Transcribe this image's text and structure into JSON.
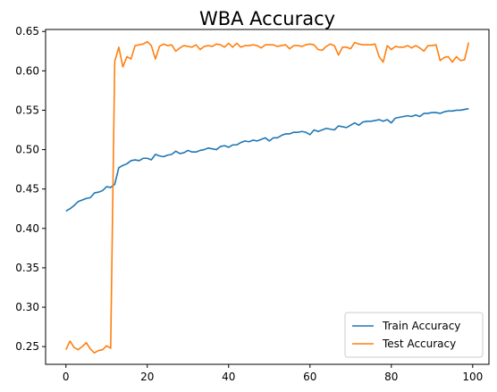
{
  "chart_data": {
    "type": "line",
    "title": "WBA Accuracy",
    "xlabel": "",
    "ylabel": "",
    "xlim": [
      -5.0,
      104.0
    ],
    "ylim": [
      0.2275,
      0.6525
    ],
    "xticks": [
      0,
      20,
      40,
      60,
      80,
      100
    ],
    "xtick_labels": [
      "0",
      "20",
      "40",
      "60",
      "80",
      "100"
    ],
    "yticks": [
      0.25,
      0.3,
      0.35,
      0.4,
      0.45,
      0.5,
      0.55,
      0.6,
      0.65
    ],
    "ytick_labels": [
      "0.25",
      "0.30",
      "0.35",
      "0.40",
      "0.45",
      "0.50",
      "0.55",
      "0.60",
      "0.65"
    ],
    "grid": false,
    "legend_position": "lower right",
    "series": [
      {
        "name": "Train Accuracy",
        "color": "#1f77b4",
        "values": [
          0.422,
          0.425,
          0.429,
          0.434,
          0.436,
          0.438,
          0.439,
          0.445,
          0.446,
          0.448,
          0.453,
          0.452,
          0.456,
          0.477,
          0.48,
          0.482,
          0.486,
          0.487,
          0.486,
          0.489,
          0.489,
          0.487,
          0.494,
          0.492,
          0.491,
          0.493,
          0.494,
          0.498,
          0.495,
          0.496,
          0.499,
          0.497,
          0.497,
          0.499,
          0.5,
          0.502,
          0.501,
          0.5,
          0.504,
          0.505,
          0.503,
          0.506,
          0.506,
          0.509,
          0.511,
          0.51,
          0.512,
          0.511,
          0.513,
          0.515,
          0.511,
          0.515,
          0.515,
          0.518,
          0.52,
          0.52,
          0.522,
          0.522,
          0.523,
          0.522,
          0.519,
          0.525,
          0.523,
          0.525,
          0.527,
          0.526,
          0.525,
          0.53,
          0.529,
          0.528,
          0.531,
          0.534,
          0.531,
          0.535,
          0.536,
          0.536,
          0.537,
          0.538,
          0.536,
          0.538,
          0.534,
          0.54,
          0.541,
          0.542,
          0.543,
          0.542,
          0.544,
          0.542,
          0.546,
          0.546,
          0.547,
          0.547,
          0.546,
          0.548,
          0.549,
          0.549,
          0.55,
          0.55,
          0.551,
          0.552
        ]
      },
      {
        "name": "Test Accuracy",
        "color": "#ff7f0e",
        "values": [
          0.246,
          0.257,
          0.249,
          0.246,
          0.25,
          0.255,
          0.247,
          0.242,
          0.245,
          0.246,
          0.251,
          0.248,
          0.612,
          0.63,
          0.605,
          0.618,
          0.615,
          0.632,
          0.633,
          0.634,
          0.637,
          0.632,
          0.615,
          0.631,
          0.634,
          0.632,
          0.633,
          0.625,
          0.629,
          0.632,
          0.631,
          0.63,
          0.633,
          0.627,
          0.631,
          0.632,
          0.631,
          0.634,
          0.633,
          0.63,
          0.635,
          0.63,
          0.635,
          0.63,
          0.632,
          0.632,
          0.633,
          0.632,
          0.629,
          0.633,
          0.633,
          0.633,
          0.631,
          0.632,
          0.633,
          0.628,
          0.632,
          0.632,
          0.631,
          0.633,
          0.634,
          0.633,
          0.627,
          0.626,
          0.631,
          0.634,
          0.632,
          0.62,
          0.63,
          0.63,
          0.628,
          0.636,
          0.634,
          0.633,
          0.633,
          0.633,
          0.634,
          0.618,
          0.611,
          0.632,
          0.627,
          0.631,
          0.63,
          0.63,
          0.632,
          0.629,
          0.632,
          0.629,
          0.625,
          0.632,
          0.632,
          0.633,
          0.613,
          0.617,
          0.618,
          0.611,
          0.618,
          0.613,
          0.614,
          0.636
        ]
      }
    ]
  }
}
